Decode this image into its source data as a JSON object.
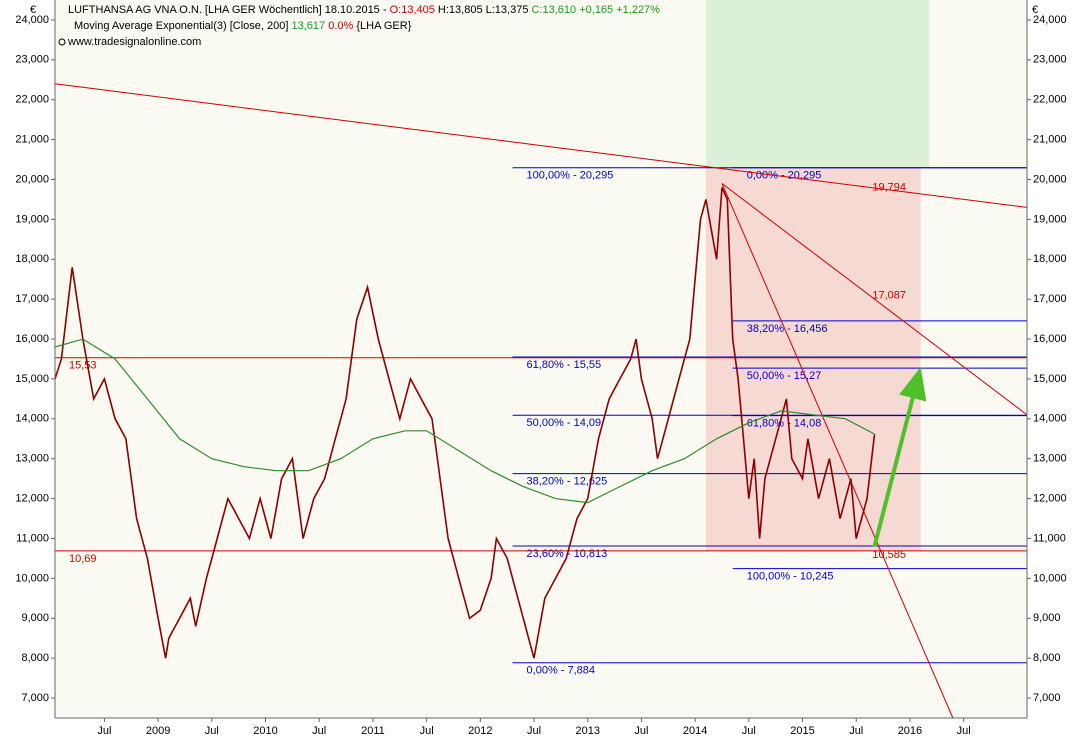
{
  "chart_data": {
    "type": "line",
    "title": "LUFTHANSA AG VNA O.N. [LHA GER  Wöchentlich] 18.10.2015 -",
    "open_text": "O:13,405",
    "hl_text": "H:13,805 L:13,375",
    "close_text": "C:13,610 +0,165 +1,227%",
    "indicator": "Moving Average Exponential(3) [Close, 200]",
    "indicator_value": "13,617",
    "indicator_change": "0.0%",
    "indicator_symbol": "{LHA GER}",
    "source": "www.tradesignalonline.com",
    "currency": "€",
    "xlim": [
      2008.04,
      2017.09
    ],
    "ylim": [
      6500,
      24500
    ],
    "xticks": [
      {
        "value": 2008.5,
        "label": "Jul"
      },
      {
        "value": 2009,
        "label": "2009"
      },
      {
        "value": 2009.5,
        "label": "Jul"
      },
      {
        "value": 2010,
        "label": "2010"
      },
      {
        "value": 2010.5,
        "label": "Jul"
      },
      {
        "value": 2011,
        "label": "2011"
      },
      {
        "value": 2011.5,
        "label": "Jul"
      },
      {
        "value": 2012,
        "label": "2012"
      },
      {
        "value": 2012.5,
        "label": "Jul"
      },
      {
        "value": 2013,
        "label": "2013"
      },
      {
        "value": 2013.5,
        "label": "Jul"
      },
      {
        "value": 2014,
        "label": "2014"
      },
      {
        "value": 2014.5,
        "label": "Jul"
      },
      {
        "value": 2015,
        "label": "2015"
      },
      {
        "value": 2015.5,
        "label": "Jul"
      },
      {
        "value": 2016,
        "label": "2016"
      },
      {
        "value": 2016.5,
        "label": "Jul"
      }
    ],
    "yticks": [
      {
        "value": 7000,
        "label": "7,000"
      },
      {
        "value": 8000,
        "label": "8,000"
      },
      {
        "value": 9000,
        "label": "9,000"
      },
      {
        "value": 10000,
        "label": "10,000"
      },
      {
        "value": 11000,
        "label": "11,000"
      },
      {
        "value": 12000,
        "label": "12,000"
      },
      {
        "value": 13000,
        "label": "13,000"
      },
      {
        "value": 14000,
        "label": "14,000"
      },
      {
        "value": 15000,
        "label": "15,000"
      },
      {
        "value": 16000,
        "label": "16,000"
      },
      {
        "value": 17000,
        "label": "17,000"
      },
      {
        "value": 18000,
        "label": "18,000"
      },
      {
        "value": 19000,
        "label": "19,000"
      },
      {
        "value": 20000,
        "label": "20,000"
      },
      {
        "value": 21000,
        "label": "21,000"
      },
      {
        "value": 22000,
        "label": "22,000"
      },
      {
        "value": 23000,
        "label": "23,000"
      },
      {
        "value": 24000,
        "label": "24,000"
      }
    ],
    "zones": [
      {
        "color": "#dcefd9",
        "x": [
          2014.1,
          2016.18
        ],
        "y": [
          20295,
          24500
        ]
      },
      {
        "color": "#f7d9d4",
        "x": [
          2014.1,
          2016.1
        ],
        "y": [
          10700,
          20295
        ]
      }
    ],
    "series": [
      {
        "color": "#8b0000",
        "x": [
          2008.04,
          2008.1,
          2008.2,
          2008.3,
          2008.4,
          2008.5,
          2008.6,
          2008.7,
          2008.8,
          2008.9,
          2009.0,
          2009.07,
          2009.1,
          2009.2,
          2009.3,
          2009.35,
          2009.45,
          2009.55,
          2009.65,
          2009.75,
          2009.85,
          2009.95,
          2010.05,
          2010.15,
          2010.25,
          2010.35,
          2010.45,
          2010.55,
          2010.65,
          2010.75,
          2010.85,
          2010.95,
          2011.05,
          2011.15,
          2011.25,
          2011.35,
          2011.45,
          2011.55,
          2011.6,
          2011.7,
          2011.8,
          2011.9,
          2012.0,
          2012.1,
          2012.15,
          2012.25,
          2012.35,
          2012.45,
          2012.5,
          2012.6,
          2012.7,
          2012.8,
          2012.9,
          2013.0,
          2013.1,
          2013.2,
          2013.3,
          2013.4,
          2013.45,
          2013.5,
          2013.6,
          2013.65,
          2013.75,
          2013.85,
          2013.95,
          2014.0,
          2014.05,
          2014.1,
          2014.2,
          2014.25,
          2014.3,
          2014.35,
          2014.4,
          2014.45,
          2014.5,
          2014.55,
          2014.6,
          2014.65,
          2014.75,
          2014.85,
          2014.9,
          2015.0,
          2015.05,
          2015.15,
          2015.25,
          2015.35,
          2015.45,
          2015.5,
          2015.6,
          2015.67
        ],
        "values": [
          15000,
          15500,
          17800,
          16000,
          14500,
          15000,
          14000,
          13500,
          11500,
          10500,
          9000,
          8000,
          8500,
          9000,
          9500,
          8800,
          10000,
          11000,
          12000,
          11500,
          11000,
          12000,
          11000,
          12500,
          13000,
          11000,
          12000,
          12500,
          13500,
          14500,
          16500,
          17300,
          16000,
          15000,
          14000,
          15000,
          14500,
          14000,
          13000,
          11000,
          10000,
          9000,
          9200,
          10000,
          11000,
          10500,
          9500,
          8500,
          8000,
          9500,
          10000,
          10500,
          11500,
          12000,
          13500,
          14500,
          15000,
          15500,
          16000,
          15000,
          14000,
          13000,
          14000,
          15000,
          16000,
          17500,
          19000,
          19500,
          18000,
          19800,
          19500,
          16000,
          15000,
          13500,
          12000,
          13000,
          11000,
          12500,
          13500,
          14500,
          13000,
          12500,
          13500,
          12000,
          13000,
          11500,
          12500,
          11000,
          12000,
          13610
        ]
      },
      {
        "color": "#2e8b2e",
        "x": [
          2008.04,
          2008.3,
          2008.6,
          2008.9,
          2009.2,
          2009.5,
          2009.8,
          2010.1,
          2010.4,
          2010.7,
          2011.0,
          2011.3,
          2011.5,
          2011.8,
          2012.1,
          2012.4,
          2012.7,
          2013.0,
          2013.3,
          2013.6,
          2013.9,
          2014.2,
          2014.5,
          2014.8,
          2015.1,
          2015.4,
          2015.67
        ],
        "values": [
          15800,
          16000,
          15500,
          14500,
          13500,
          13000,
          12800,
          12700,
          12700,
          13000,
          13500,
          13700,
          13700,
          13200,
          12700,
          12300,
          12000,
          11900,
          12300,
          12700,
          13000,
          13500,
          13900,
          14200,
          14100,
          14000,
          13617
        ]
      }
    ],
    "levels": [
      {
        "label": "100,00% - 20,295",
        "value": 20295,
        "from": 2012.3,
        "to": 2017.09,
        "color": "#0000cc"
      },
      {
        "label": "61,80% - 15,55",
        "value": 15550,
        "from": 2012.3,
        "to": 2017.09,
        "color": "#0000cc"
      },
      {
        "label": "50,00% - 14,09",
        "value": 14090,
        "from": 2012.3,
        "to": 2017.09,
        "color": "#0000cc"
      },
      {
        "label": "38,20% - 12,625",
        "value": 12625,
        "from": 2012.3,
        "to": 2017.09,
        "color": "#0000cc"
      },
      {
        "label": "23,60% - 10,813",
        "value": 10813,
        "from": 2012.3,
        "to": 2017.09,
        "color": "#0000cc"
      },
      {
        "label": "0,00% - 7,884",
        "value": 7884,
        "from": 2012.3,
        "to": 2017.09,
        "color": "#0000cc"
      },
      {
        "label": "0,00% - 20,295",
        "value": 20295,
        "from": 2014.35,
        "to": 2017.09,
        "color": "#0000cc"
      },
      {
        "label": "38,20% - 16,456",
        "value": 16456,
        "from": 2014.35,
        "to": 2017.09,
        "color": "#0000cc"
      },
      {
        "label": "50,00% - 15,27",
        "value": 15270,
        "from": 2014.35,
        "to": 2017.09,
        "color": "#0000cc"
      },
      {
        "label": "61,80% - 14,08",
        "value": 14080,
        "from": 2014.35,
        "to": 2017.09,
        "color": "#0000cc"
      },
      {
        "label": "100,00% - 10,245",
        "value": 10245,
        "from": 2014.35,
        "to": 2017.09,
        "color": "#0000cc"
      },
      {
        "label": "15,53",
        "value": 15530,
        "from": 2008.04,
        "to": 2017.09,
        "color": "#cc0000"
      },
      {
        "label": "10,69",
        "value": 10690,
        "from": 2008.04,
        "to": 2017.09,
        "color": "#cc0000"
      }
    ],
    "trendlines": [
      {
        "color": "#cc0000",
        "x": [
          2008.04,
          2017.09
        ],
        "y": [
          22400,
          19300
        ]
      },
      {
        "color": "#cc0000",
        "x": [
          2014.25,
          2017.09
        ],
        "y": [
          19900,
          14100
        ]
      },
      {
        "color": "#cc0000",
        "x": [
          2014.25,
          2016.4
        ],
        "y": [
          19900,
          6500
        ]
      }
    ],
    "annotations": [
      {
        "text": "19,794",
        "x": 2015.65,
        "y": 19794
      },
      {
        "text": "17,087",
        "x": 2015.65,
        "y": 17087
      },
      {
        "text": "10,585",
        "x": 2015.65,
        "y": 10585
      }
    ],
    "arrow": {
      "color": "#4fbf2a",
      "x": [
        2015.67,
        2016.1
      ],
      "y": [
        10800,
        15300
      ]
    }
  }
}
